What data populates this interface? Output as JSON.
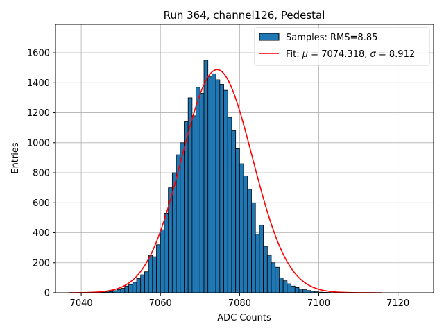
{
  "chart_data": {
    "type": "bar",
    "title": "Run 364, channel126, Pedestal",
    "xlabel": "ADC Counts",
    "ylabel": "Entries",
    "xlim": [
      7033.5,
      7129
    ],
    "ylim": [
      0,
      1790
    ],
    "xticks": [
      7040,
      7060,
      7080,
      7100,
      7120
    ],
    "yticks": [
      0,
      200,
      400,
      600,
      800,
      1000,
      1200,
      1400,
      1600
    ],
    "grid": true,
    "legend_position": "top-right",
    "bin_width": 1,
    "bin_start": 7037,
    "counts": [
      0,
      0,
      0,
      0,
      0,
      0,
      0,
      2,
      3,
      5,
      8,
      14,
      22,
      30,
      45,
      55,
      70,
      95,
      120,
      140,
      250,
      240,
      320,
      420,
      530,
      700,
      800,
      920,
      1000,
      1140,
      1300,
      1180,
      1370,
      1330,
      1550,
      1440,
      1460,
      1420,
      1390,
      1350,
      1170,
      1080,
      960,
      860,
      780,
      690,
      600,
      390,
      450,
      310,
      250,
      200,
      170,
      100,
      80,
      60,
      45,
      35,
      25,
      20,
      15,
      10,
      6,
      4,
      3,
      2,
      1,
      1,
      0,
      0,
      0,
      0,
      0,
      0,
      0,
      0,
      0,
      0,
      0
    ],
    "series": [
      {
        "name": "Samples: RMS=8.85",
        "kind": "histogram",
        "color": "#1f77b4",
        "edgecolor": "#000000"
      },
      {
        "name_prefix": "Fit: ",
        "name_mu_symbol": "μ",
        "name_mu_value": " = 7074.318, ",
        "name_sigma_symbol": "σ",
        "name_sigma_value": " = 8.912",
        "kind": "gaussian-fit",
        "color": "#ff0000",
        "mu": 7074.318,
        "sigma": 8.912,
        "amplitude": 1488,
        "x_range": [
          7037,
          7116
        ]
      }
    ]
  }
}
